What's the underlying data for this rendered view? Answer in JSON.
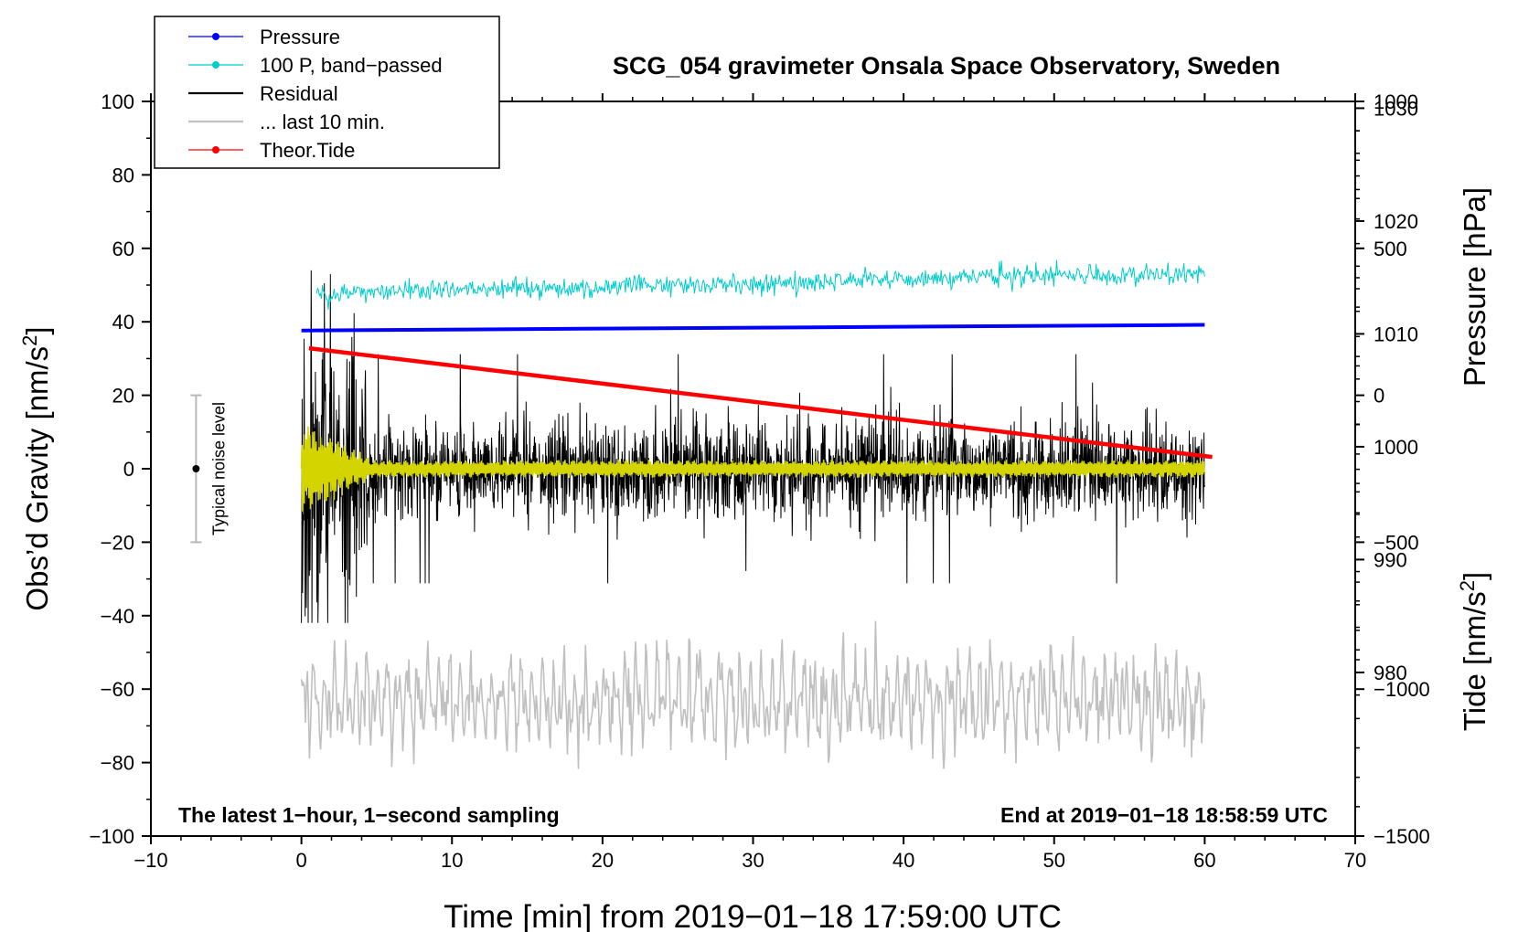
{
  "chart_data": {
    "type": "line",
    "title": "SCG_054 gravimeter Onsala Space Observatory, Sweden",
    "xlabel": "Time [min] from 2019−01−18 17:59:00 UTC",
    "ylabel_left_main": "Obs’d Gravity [nm/s",
    "ylabel_left_sup": "2",
    "ylabel_left_close": "]",
    "ylabel_right_pressure": "Pressure [hPa]",
    "ylabel_right_tide_main": "Tide [nm/s",
    "ylabel_right_tide_sup": "2",
    "ylabel_right_tide_close": "]",
    "xlim": [
      -10,
      70
    ],
    "ylim": [
      -100,
      100
    ],
    "pressure_lim": [
      1030.6,
      965.5
    ],
    "tide_lim": [
      -1500,
      1000
    ],
    "xticks": [
      -10,
      0,
      10,
      20,
      30,
      40,
      50,
      60,
      70
    ],
    "xtick_labels": [
      "−10",
      "0",
      "10",
      "20",
      "30",
      "40",
      "50",
      "60",
      "70"
    ],
    "yticks": [
      100,
      80,
      60,
      40,
      20,
      0,
      -20,
      -40,
      -60,
      -80,
      -100
    ],
    "ytick_labels": [
      "100",
      "80",
      "60",
      "40",
      "20",
      "0",
      "−20",
      "−40",
      "−60",
      "−80",
      "−100"
    ],
    "pressure_ticks": [
      1030,
      1020,
      1010,
      1000,
      990,
      980
    ],
    "pressure_tick_labels": [
      "1030",
      "1020",
      "1010",
      "1000",
      "990",
      "980"
    ],
    "tide_ticks": [
      1000,
      500,
      0,
      -500,
      -1000,
      -1500
    ],
    "tide_tick_labels": [
      "1000",
      "500",
      "0",
      "−500",
      "−1000",
      "−1500"
    ],
    "legend_position": "top-left",
    "legend": [
      {
        "label": "Pressure",
        "color": "#0000ff",
        "marker": true
      },
      {
        "label": "100 P, band−passed",
        "color": "#00cccc",
        "marker": true
      },
      {
        "label": "Residual",
        "color": "#000000",
        "marker": false
      },
      {
        "label": "... last 10 min.",
        "color": "#c0c0c0",
        "marker": false
      },
      {
        "label": "Theor.Tide",
        "color": "#ff0000",
        "marker": true
      }
    ],
    "annotation_left": "The latest 1−hour, 1−second sampling",
    "annotation_right": "End at 2019−01−18 18:58:59 UTC",
    "noise_label": "Typical noise level",
    "noise_bar": {
      "x": -7,
      "center": 0,
      "half_range": 20
    },
    "series": [
      {
        "name": "Pressure",
        "color": "#0000ff",
        "axis": "pressure_hPa",
        "x": [
          0,
          60
        ],
        "values": [
          1010.3,
          1010.8
        ]
      },
      {
        "name": "100 P, band-passed",
        "color": "#00cccc",
        "axis": "gravity",
        "x_range": [
          1,
          60
        ],
        "mean_start": 47.5,
        "mean_end": 53.5,
        "amplitude": 2.5
      },
      {
        "name": "Residual",
        "color": "#000000",
        "axis": "gravity",
        "x_range": [
          0,
          60
        ],
        "mean": 0,
        "typical_amplitude": 12,
        "peak_amplitude": 50
      },
      {
        "name": "Residual (smoothed)",
        "color": "#d4d400",
        "axis": "gravity",
        "x_range": [
          0,
          60
        ],
        "mean": 0,
        "typical_amplitude": 2.5
      },
      {
        "name": "... last 10 min.",
        "color": "#c0c0c0",
        "axis": "gravity",
        "x_range": [
          0,
          60
        ],
        "mean": -63,
        "amplitude_range": [
          -86,
          -37
        ]
      },
      {
        "name": "Theor.Tide",
        "color": "#ff0000",
        "axis": "tide_nms2",
        "x": [
          0.5,
          60.5
        ],
        "values": [
          160,
          -210
        ]
      }
    ]
  }
}
